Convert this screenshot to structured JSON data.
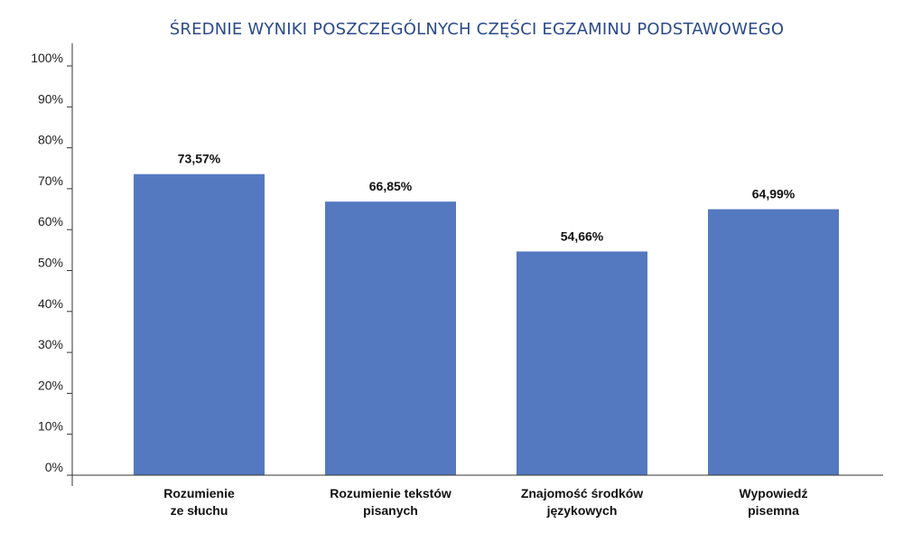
{
  "chart_data": {
    "type": "bar",
    "title": "ŚREDNIE WYNIKI POSZCZEGÓLNYCH CZĘŚCI EGZAMINU PODSTAWOWEGO",
    "categories": [
      "Rozumienie\nze słuchu",
      "Rozumienie tekstów\npisanych",
      "Znajomość środków\njęzykowych",
      "Wypowiedź\npisemna"
    ],
    "values": [
      73.57,
      66.85,
      54.66,
      64.99
    ],
    "value_labels": [
      "73,57%",
      "66,85%",
      "54,66%",
      "64,99%"
    ],
    "ylim": [
      0,
      100
    ],
    "yticks": [
      0,
      10,
      20,
      30,
      40,
      50,
      60,
      70,
      80,
      90,
      100
    ],
    "ytick_labels": [
      "0%",
      "10%",
      "20%",
      "30%",
      "40%",
      "50%",
      "60%",
      "70%",
      "80%",
      "90%",
      "100%"
    ],
    "xlabel": "",
    "ylabel": "",
    "grid": false,
    "legend": "none",
    "colors": {
      "bar": "#5479c0",
      "title": "#2b4a8a",
      "axis": "#333333"
    }
  }
}
